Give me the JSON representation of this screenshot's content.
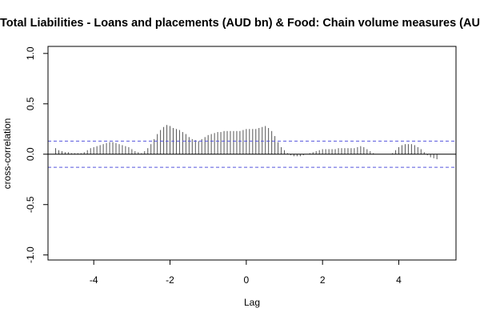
{
  "chart_data": {
    "type": "bar",
    "title": "Total Liabilities - Loans and placements (AUD bn) & Food: Chain volume measures (AUD",
    "xlabel": "Lag",
    "ylabel": "cross-correlation",
    "xlim": [
      -5.2,
      5.5
    ],
    "ylim": [
      -1.05,
      1.07
    ],
    "x_ticks": [
      -4,
      -2,
      0,
      2,
      4
    ],
    "y_ticks": [
      -1.0,
      -0.5,
      0.0,
      0.5,
      1.0
    ],
    "x_tick_labels": [
      "-4",
      "-2",
      "0",
      "2",
      "4"
    ],
    "y_tick_labels": [
      "-1.0",
      "-0.5",
      "0.0",
      "0.5",
      "1.0"
    ],
    "confidence_bound": 0.13,
    "colors": {
      "bars": "#555555",
      "zero_line": "#000000",
      "ci_lines": "#5555dd"
    },
    "grid": false,
    "lags": [
      -5.0,
      -4.917,
      -4.833,
      -4.75,
      -4.667,
      -4.583,
      -4.5,
      -4.417,
      -4.333,
      -4.25,
      -4.167,
      -4.083,
      -4.0,
      -3.917,
      -3.833,
      -3.75,
      -3.667,
      -3.583,
      -3.5,
      -3.417,
      -3.333,
      -3.25,
      -3.167,
      -3.083,
      -3.0,
      -2.917,
      -2.833,
      -2.75,
      -2.667,
      -2.583,
      -2.5,
      -2.417,
      -2.333,
      -2.25,
      -2.167,
      -2.083,
      -2.0,
      -1.917,
      -1.833,
      -1.75,
      -1.667,
      -1.583,
      -1.5,
      -1.417,
      -1.333,
      -1.25,
      -1.167,
      -1.083,
      -1.0,
      -0.917,
      -0.833,
      -0.75,
      -0.667,
      -0.583,
      -0.5,
      -0.417,
      -0.333,
      -0.25,
      -0.167,
      -0.083,
      0.0,
      0.083,
      0.167,
      0.25,
      0.333,
      0.417,
      0.5,
      0.583,
      0.667,
      0.75,
      0.833,
      0.917,
      1.0,
      1.083,
      1.167,
      1.25,
      1.333,
      1.417,
      1.5,
      1.583,
      1.667,
      1.75,
      1.833,
      1.917,
      2.0,
      2.083,
      2.167,
      2.25,
      2.333,
      2.417,
      2.5,
      2.583,
      2.667,
      2.75,
      2.833,
      2.917,
      3.0,
      3.083,
      3.167,
      3.25,
      3.333,
      3.417,
      3.5,
      3.583,
      3.667,
      3.75,
      3.833,
      3.917,
      4.0,
      4.083,
      4.167,
      4.25,
      4.333,
      4.417,
      4.5,
      4.583,
      4.667,
      4.75,
      4.833,
      4.917,
      5.0
    ],
    "values": [
      0.06,
      0.04,
      0.03,
      0.02,
      0.02,
      0.01,
      0.01,
      0.01,
      0.01,
      0.02,
      0.04,
      0.06,
      0.07,
      0.08,
      0.09,
      0.1,
      0.11,
      0.12,
      0.12,
      0.11,
      0.1,
      0.09,
      0.08,
      0.07,
      0.05,
      0.03,
      0.02,
      0.01,
      0.03,
      0.06,
      0.1,
      0.15,
      0.2,
      0.24,
      0.27,
      0.29,
      0.28,
      0.26,
      0.25,
      0.24,
      0.22,
      0.2,
      0.17,
      0.15,
      0.14,
      0.13,
      0.15,
      0.17,
      0.19,
      0.2,
      0.21,
      0.22,
      0.22,
      0.23,
      0.23,
      0.23,
      0.23,
      0.23,
      0.23,
      0.24,
      0.25,
      0.25,
      0.25,
      0.25,
      0.26,
      0.27,
      0.28,
      0.26,
      0.23,
      0.18,
      0.12,
      0.07,
      0.04,
      0.01,
      -0.01,
      -0.02,
      -0.02,
      -0.02,
      -0.01,
      0.0,
      0.01,
      0.02,
      0.03,
      0.04,
      0.05,
      0.05,
      0.05,
      0.05,
      0.05,
      0.06,
      0.06,
      0.06,
      0.06,
      0.06,
      0.06,
      0.07,
      0.08,
      0.07,
      0.05,
      0.03,
      0.01,
      0.0,
      0.0,
      0.0,
      0.0,
      0.0,
      0.01,
      0.04,
      0.07,
      0.09,
      0.1,
      0.1,
      0.1,
      0.09,
      0.07,
      0.05,
      0.02,
      -0.01,
      -0.03,
      -0.04,
      -0.05
    ]
  }
}
